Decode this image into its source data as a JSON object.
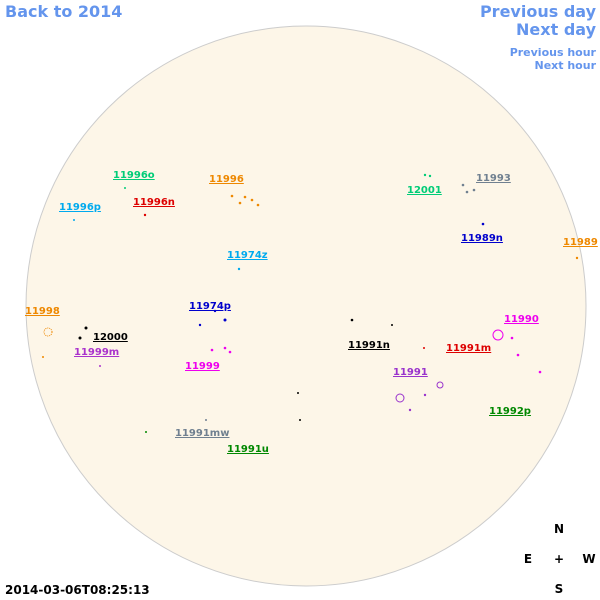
{
  "navigation": {
    "back": "Back to 2014",
    "previous_day": "Previous day",
    "next_day": "Next day",
    "previous_hour": "Previous hour",
    "next_hour": "Next hour"
  },
  "regions": [
    {
      "label": "11996o",
      "color": "#00cc77"
    },
    {
      "label": "11996n",
      "color": "#dd0000"
    },
    {
      "label": "11996p",
      "color": "#00aaee"
    },
    {
      "label": "11996",
      "color": "#ee8800"
    },
    {
      "label": "12001",
      "color": "#00cc77"
    },
    {
      "label": "11993",
      "color": "#708090"
    },
    {
      "label": "11989n",
      "color": "#0000cc"
    },
    {
      "label": "11989",
      "color": "#ee8800"
    },
    {
      "label": "11974z",
      "color": "#00aaee"
    },
    {
      "label": "11998",
      "color": "#ee8800"
    },
    {
      "label": "11974p",
      "color": "#0000cc"
    },
    {
      "label": "12000",
      "color": "#000000"
    },
    {
      "label": "11999m",
      "color": "#aa33cc"
    },
    {
      "label": "11991n",
      "color": "#000000"
    },
    {
      "label": "11991m",
      "color": "#dd0000"
    },
    {
      "label": "11990",
      "color": "#ee00ee"
    },
    {
      "label": "11999",
      "color": "#ee00ee"
    },
    {
      "label": "11991",
      "color": "#9933cc"
    },
    {
      "label": "11992p",
      "color": "#008800"
    },
    {
      "label": "11991mw",
      "color": "#708090"
    },
    {
      "label": "11991u",
      "color": "#008800"
    }
  ],
  "timestamp": "2014-03-06T08:25:13",
  "compass": {
    "north": "N",
    "east": "E",
    "center": "+",
    "west": "W",
    "south": "S"
  }
}
